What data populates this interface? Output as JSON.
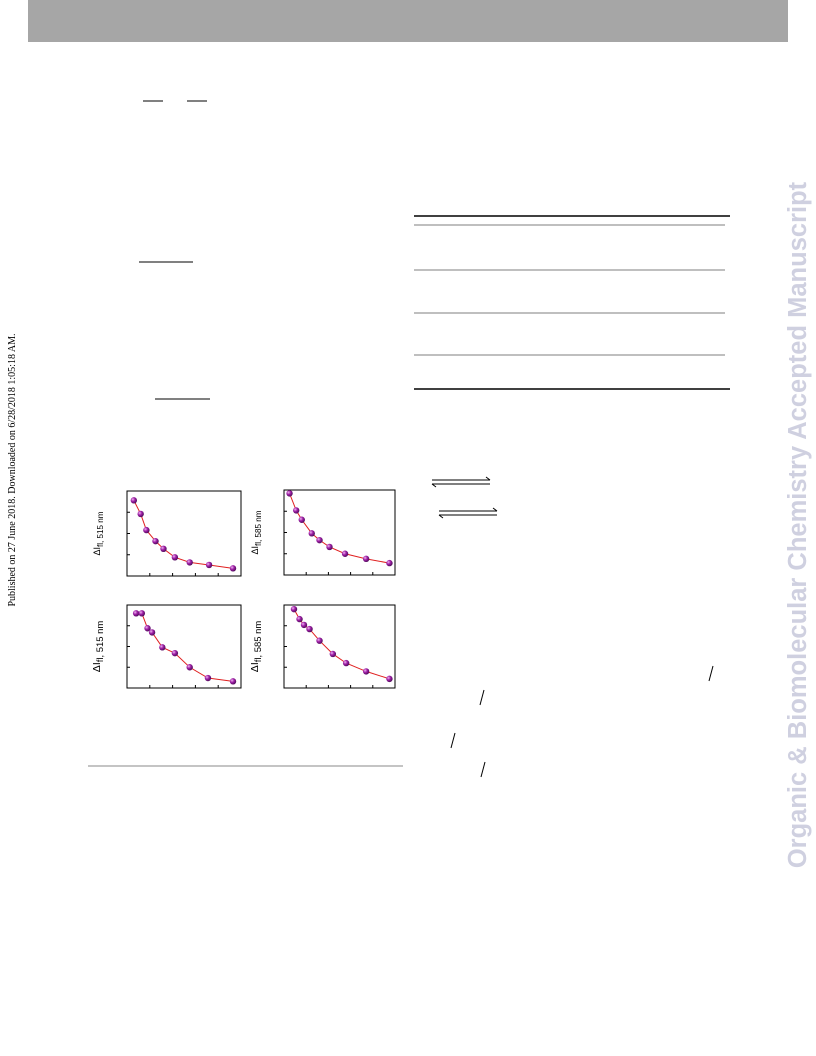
{
  "sidebar_left": "Published on 27 June 2018. Downloaded on 6/28/2018 1:05:18 AM.",
  "watermark": "Organic & Biomolecular Chemistry Accepted Manuscript",
  "plots": [
    {
      "ylabel_main": "ΔI",
      "ylabel_sub": "fl, 515 nm",
      "xlim": [
        0,
        10
      ],
      "ylim": [
        0,
        10
      ],
      "x": [
        0.6,
        1.2,
        1.7,
        2.5,
        3.2,
        4.2,
        5.5,
        7.2,
        9.3
      ],
      "values": [
        8.9,
        7.3,
        5.4,
        4.1,
        3.2,
        2.2,
        1.6,
        1.3,
        0.9
      ]
    },
    {
      "ylabel_main": "ΔI",
      "ylabel_sub": "fl, 585 nm",
      "xlim": [
        0,
        10
      ],
      "ylim": [
        0,
        10
      ],
      "x": [
        0.5,
        1.1,
        1.6,
        2.5,
        3.2,
        4.1,
        5.5,
        7.4,
        9.5
      ],
      "values": [
        9.6,
        7.6,
        6.5,
        4.9,
        4.1,
        3.3,
        2.5,
        1.9,
        1.4
      ]
    },
    {
      "ylabel_main": "ΔI",
      "ylabel_sub": "fl, 515 nm",
      "xlim": [
        0,
        10
      ],
      "ylim": [
        0,
        10
      ],
      "x": [
        0.8,
        1.3,
        1.8,
        2.2,
        3.1,
        4.2,
        5.5,
        7.1,
        9.3
      ],
      "values": [
        9.0,
        9.0,
        7.2,
        6.7,
        4.9,
        4.2,
        2.5,
        1.2,
        0.8
      ]
    },
    {
      "ylabel_main": "ΔI",
      "ylabel_sub": "fl, 585 nm",
      "xlim": [
        0,
        10
      ],
      "ylim": [
        0,
        10
      ],
      "x": [
        0.9,
        1.4,
        1.8,
        2.3,
        3.2,
        4.4,
        5.6,
        7.4,
        9.5
      ],
      "values": [
        9.5,
        8.3,
        7.6,
        7.1,
        5.7,
        4.1,
        3.0,
        2.0,
        1.1
      ]
    }
  ]
}
